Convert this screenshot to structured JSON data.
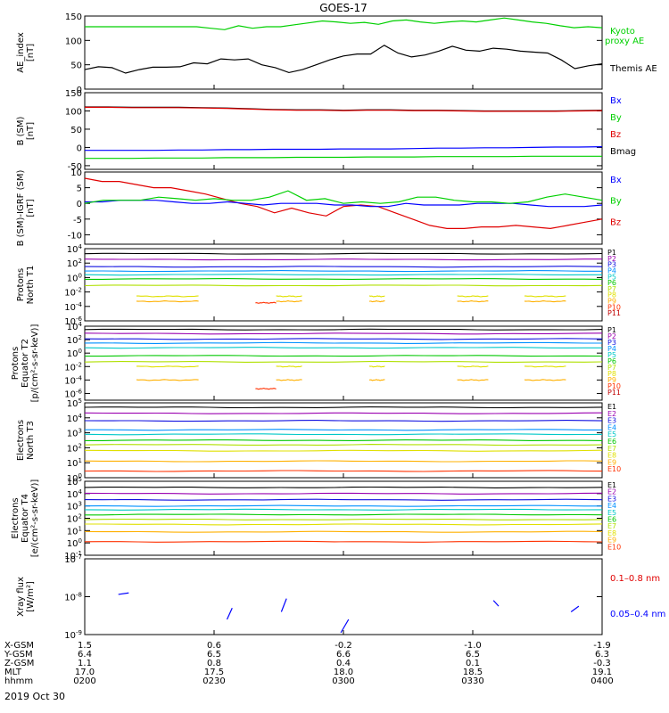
{
  "title": "GOES-17",
  "date_label": "2019 Oct 30",
  "colors": {
    "black": "#000000",
    "green": "#00d000",
    "blue": "#0000ff",
    "red": "#e00000",
    "P1": "#000000",
    "P2": "#9a00b0",
    "P3": "#1010e0",
    "P4": "#0090ff",
    "P5": "#00c8c8",
    "P6": "#00c800",
    "P7": "#b0e000",
    "P8": "#e0e000",
    "P9": "#ffb000",
    "P10": "#ff3000",
    "P11": "#c00000"
  },
  "x_axis": {
    "rows": [
      "X-GSM",
      "Y-GSM",
      "Z-GSM",
      "MLT",
      "hhmm"
    ],
    "ticks": [
      {
        "values": [
          "1.5",
          "6.4",
          "1.1",
          "17.0",
          "0200"
        ]
      },
      {
        "values": [
          "0.6",
          "6.5",
          "0.8",
          "17.5",
          "0230"
        ]
      },
      {
        "values": [
          "-0.2",
          "6.6",
          "0.4",
          "18.0",
          "0300"
        ]
      },
      {
        "values": [
          "-1.0",
          "6.5",
          "0.1",
          "18.5",
          "0330"
        ]
      },
      {
        "values": [
          "-1.9",
          "6.3",
          "-0.3",
          "19.1",
          "0400"
        ]
      }
    ]
  },
  "chart_data": [
    {
      "type": "line",
      "ylabel": "AE_index\n[nT]",
      "ylim": [
        0,
        150
      ],
      "yticks": [
        "0",
        "50",
        "100",
        "150"
      ],
      "legend": [
        {
          "text": "Kyoto\nproxy AE",
          "color": "green"
        },
        {
          "text": "Themis AE",
          "color": "black"
        }
      ],
      "series": [
        {
          "name": "Kyoto proxy AE",
          "color": "green",
          "values": [
            128,
            128,
            128,
            128,
            128,
            128,
            128,
            128,
            128,
            125,
            122,
            130,
            125,
            128,
            128,
            132,
            136,
            140,
            138,
            135,
            137,
            133,
            140,
            142,
            138,
            135,
            138,
            140,
            138,
            142,
            146,
            142,
            138,
            135,
            130,
            126,
            128,
            126
          ]
        },
        {
          "name": "Themis AE",
          "color": "black",
          "values": [
            40,
            46,
            44,
            33,
            40,
            45,
            45,
            46,
            54,
            52,
            62,
            60,
            62,
            50,
            44,
            34,
            40,
            50,
            60,
            68,
            72,
            72,
            90,
            74,
            66,
            70,
            78,
            88,
            80,
            78,
            84,
            82,
            78,
            76,
            74,
            60,
            42,
            48,
            52
          ]
        }
      ]
    },
    {
      "type": "line",
      "ylabel": "B (SM)\n[nT]",
      "ylim": [
        -60,
        150
      ],
      "yticks": [
        "-50",
        "0",
        "50",
        "100",
        "150"
      ],
      "legend": [
        {
          "text": "Bx",
          "color": "blue"
        },
        {
          "text": "By",
          "color": "green"
        },
        {
          "text": "Bz",
          "color": "red"
        },
        {
          "text": "Bmag",
          "color": "black"
        }
      ],
      "series": [
        {
          "name": "Bmag",
          "color": "black",
          "values": [
            111,
            111,
            110,
            110,
            110,
            109,
            108,
            106,
            104,
            103,
            103,
            102,
            103,
            103,
            102,
            102,
            101,
            100,
            100,
            100,
            100,
            101,
            102
          ]
        },
        {
          "name": "Bz",
          "color": "red",
          "values": [
            110,
            110,
            109,
            109,
            109,
            108,
            107,
            105,
            103,
            102,
            102,
            101,
            102,
            102,
            101,
            101,
            100,
            99,
            99,
            99,
            99,
            100,
            101
          ]
        },
        {
          "name": "Bx",
          "color": "blue",
          "values": [
            -8,
            -8,
            -8,
            -8,
            -7,
            -7,
            -6,
            -6,
            -5,
            -5,
            -5,
            -4,
            -4,
            -4,
            -3,
            -2,
            -2,
            -1,
            -1,
            0,
            1,
            1,
            2
          ]
        },
        {
          "name": "By",
          "color": "green",
          "values": [
            -30,
            -30,
            -30,
            -29,
            -29,
            -29,
            -28,
            -28,
            -28,
            -27,
            -27,
            -27,
            -26,
            -26,
            -26,
            -25,
            -25,
            -25,
            -25,
            -24,
            -24,
            -24,
            -24
          ]
        }
      ]
    },
    {
      "type": "line",
      "ylabel": "B (SM)-IGRF (SM)\n[nT]",
      "ylim": [
        -13,
        10
      ],
      "yticks": [
        "-10",
        "-5",
        "0",
        "5",
        "10"
      ],
      "legend": [
        {
          "text": "Bx",
          "color": "blue"
        },
        {
          "text": "By",
          "color": "green"
        },
        {
          "text": "Bz",
          "color": "red"
        }
      ],
      "series": [
        {
          "name": "Bz",
          "color": "red",
          "values": [
            8,
            7,
            7,
            6,
            5,
            5,
            4,
            3,
            1.5,
            0,
            -1,
            -3,
            -1.5,
            -3,
            -4,
            -1,
            -0.5,
            -1,
            -3,
            -5,
            -7,
            -8,
            -8,
            -7.5,
            -7.5,
            -7,
            -7.5,
            -8,
            -7,
            -6,
            -5
          ]
        },
        {
          "name": "Bx",
          "color": "blue",
          "values": [
            0.5,
            0.5,
            1,
            1,
            1,
            0.5,
            0,
            0,
            0.5,
            0,
            -0.5,
            0,
            0,
            0,
            -0.5,
            -0.5,
            -1,
            -1,
            0,
            -0.5,
            -0.5,
            -0.5,
            0,
            0,
            0,
            -0.5,
            -1,
            -1,
            -1,
            -0.5
          ]
        },
        {
          "name": "By",
          "color": "green",
          "values": [
            0,
            1,
            1,
            1,
            2,
            1.5,
            1,
            1.5,
            1,
            1,
            2,
            4,
            1,
            1.5,
            0,
            0.5,
            0,
            0.5,
            2,
            2,
            1,
            0.5,
            0.5,
            0,
            0.5,
            2,
            3,
            2,
            1
          ]
        }
      ]
    },
    {
      "type": "line",
      "ylabel": "Protons\nNorth T1",
      "ylim": [
        -6,
        4
      ],
      "yticks": [
        "10^4",
        "10^2",
        "10^0",
        "10^-2",
        "10^-4",
        "10^-6"
      ],
      "legend": [
        "P1",
        "P2",
        "P3",
        "P4",
        "P5",
        "P6",
        "P7",
        "P8",
        "P9",
        "P10",
        "P11"
      ],
      "levels": [
        3.3,
        2.5,
        1.5,
        0.9,
        0.4,
        -0.2,
        -1.1,
        -2.6,
        -3.3,
        -3.5,
        null
      ]
    },
    {
      "type": "line",
      "ylabel": "Protons\nEquator T2\n[p/(cm²-s-sr-keV)]",
      "ylim": [
        -7,
        4
      ],
      "yticks": [
        "10^4",
        "10^2",
        "10^0",
        "10^-2",
        "10^-4",
        "10^-6"
      ],
      "legend": [
        "P1",
        "P2",
        "P3",
        "P4",
        "P5",
        "P6",
        "P7",
        "P8",
        "P9",
        "P10",
        "P11"
      ],
      "levels": [
        3.5,
        2.9,
        2.1,
        1.5,
        0.8,
        -0.4,
        -1.3,
        -2.0,
        -4.0,
        -5.3,
        null
      ]
    },
    {
      "type": "line",
      "ylabel": "Electrons\nNorth T3",
      "ylim": [
        0,
        5
      ],
      "yticks": [
        "10^5",
        "10^4",
        "10^3",
        "10^2",
        "10^1",
        "10^0"
      ],
      "legend": [
        "E1",
        "E2",
        "E3",
        "E4",
        "E5",
        "E6",
        "E7",
        "E8",
        "E9",
        "E10"
      ],
      "levels": [
        4.7,
        4.3,
        3.8,
        3.2,
        2.9,
        2.5,
        2.2,
        1.8,
        1.1,
        0.45
      ]
    },
    {
      "type": "line",
      "ylabel": "Electrons\nEquator T4\n[e/(cm²-s-sr-keV)]",
      "ylim": [
        -1,
        5
      ],
      "yticks": [
        "10^5",
        "10^4",
        "10^3",
        "10^2",
        "10^1",
        "10^0",
        "10^-1"
      ],
      "legend": [
        "E1",
        "E2",
        "E3",
        "E4",
        "E5",
        "E6",
        "E7",
        "E8",
        "E9",
        "E10"
      ],
      "levels": [
        4.5,
        4.0,
        3.5,
        3.0,
        2.7,
        2.3,
        1.9,
        1.5,
        0.9,
        0.1
      ]
    },
    {
      "type": "line",
      "ylabel": "Xray flux\n[W/m²]",
      "ylim": [
        -9,
        -7
      ],
      "yticks": [
        "10^-7",
        "10^-8",
        "10^-9"
      ],
      "legend": [
        {
          "text": "0.1–0.8 nm",
          "color": "red"
        },
        {
          "text": "0.05–0.4 nm",
          "color": "blue"
        }
      ],
      "segments": [
        {
          "x": [
            0.065,
            0.085
          ],
          "y": [
            -7.94,
            -7.9
          ]
        },
        {
          "x": [
            0.275,
            0.285
          ],
          "y": [
            -8.6,
            -8.3
          ]
        },
        {
          "x": [
            0.38,
            0.39
          ],
          "y": [
            -8.4,
            -8.05
          ]
        },
        {
          "x": [
            0.495,
            0.51
          ],
          "y": [
            -8.95,
            -8.6
          ]
        },
        {
          "x": [
            0.79,
            0.8
          ],
          "y": [
            -8.1,
            -8.25
          ]
        },
        {
          "x": [
            0.94,
            0.955
          ],
          "y": [
            -8.4,
            -8.25
          ]
        }
      ]
    }
  ]
}
